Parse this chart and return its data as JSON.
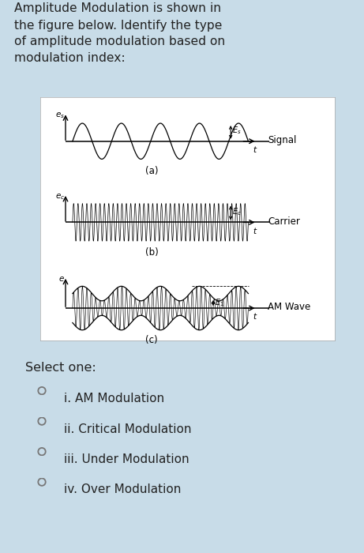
{
  "bg_color": "#c8dce8",
  "panel_color": "#ffffff",
  "text_color": "#222222",
  "header_text": "Amplitude Modulation is shown in\nthe figure below. Identify the type\nof amplitude modulation based on\nmodulation index:",
  "signal_label": "Signal",
  "carrier_label": "Carrier",
  "am_label": "AM Wave",
  "panel_a_label": "(a)",
  "panel_b_label": "(b)",
  "panel_c_label": "(c)",
  "select_text": "Select one:",
  "options": [
    "i. AM Modulation",
    "ii. Critical Modulation",
    "iii. Under Modulation",
    "iv. Over Modulation"
  ],
  "signal_cycles": 4.5,
  "signal_amp": 0.75,
  "carrier_cycles": 40,
  "carrier_amp": 0.85,
  "mod_index": 0.5,
  "am_carrier_cycles": 40,
  "header_fontsize": 11.2,
  "label_fontsize": 7.5,
  "option_fontsize": 11.0,
  "select_fontsize": 11.5
}
